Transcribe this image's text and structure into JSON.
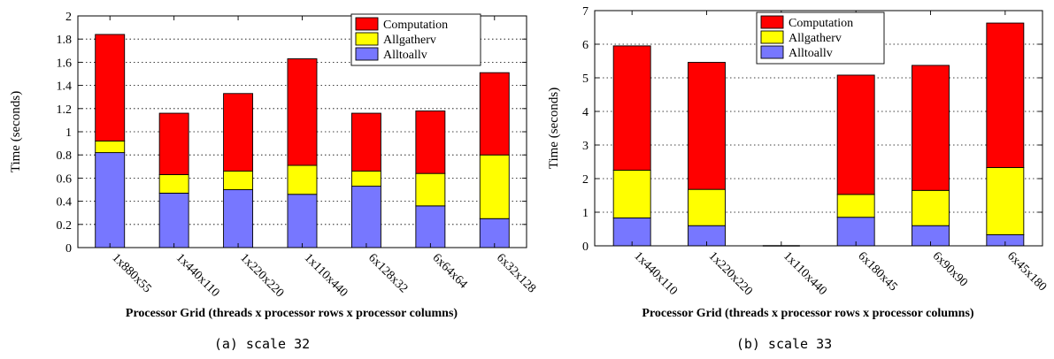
{
  "figure": {
    "captions": [
      "(a) scale 32",
      "(b) scale 33"
    ]
  },
  "chart_data": [
    {
      "type": "bar",
      "stacked": true,
      "title": "",
      "xlabel": "Processor Grid (threads x processor rows x processor columns)",
      "ylabel": "Time (seconds)",
      "ylim": [
        0,
        2
      ],
      "yticks": [
        "0",
        "0.2",
        "0.4",
        "0.6",
        "0.8",
        "1",
        "1.2",
        "1.4",
        "1.6",
        "1.8",
        "2"
      ],
      "ytick_values": [
        0,
        0.2,
        0.4,
        0.6,
        0.8,
        1.0,
        1.2,
        1.4,
        1.6,
        1.8,
        2.0
      ],
      "grid": "horizontal dotted",
      "legend_position": "top-right",
      "categories": [
        "1x880x55",
        "1x440x110",
        "1x220x220",
        "1x110x440",
        "6x128x32",
        "6x64x64",
        "6x32x128"
      ],
      "series": [
        {
          "name": "Alltoallv",
          "color": "#7777ff",
          "values": [
            0.82,
            0.47,
            0.5,
            0.46,
            0.53,
            0.36,
            0.25
          ]
        },
        {
          "name": "Allgatherv",
          "color": "#ffff00",
          "values": [
            0.1,
            0.16,
            0.16,
            0.25,
            0.13,
            0.28,
            0.55
          ]
        },
        {
          "name": "Computation",
          "color": "#ff0000",
          "values": [
            0.92,
            0.53,
            0.67,
            0.92,
            0.5,
            0.54,
            0.71
          ]
        }
      ]
    },
    {
      "type": "bar",
      "stacked": true,
      "title": "",
      "xlabel": "Processor Grid (threads x processor rows x processor columns)",
      "ylabel": "Time (seconds)",
      "ylim": [
        0,
        7
      ],
      "yticks": [
        "0",
        "1",
        "2",
        "3",
        "4",
        "5",
        "6",
        "7"
      ],
      "ytick_values": [
        0,
        1,
        2,
        3,
        4,
        5,
        6,
        7
      ],
      "grid": "horizontal dotted",
      "legend_position": "top-center",
      "categories": [
        "1x440x110",
        "1x220x220",
        "1x110x440",
        "6x180x45",
        "6x90x90",
        "6x45x180"
      ],
      "series": [
        {
          "name": "Alltoallv",
          "color": "#7777ff",
          "values": [
            0.83,
            0.6,
            0.0,
            0.85,
            0.6,
            0.33
          ]
        },
        {
          "name": "Allgatherv",
          "color": "#ffff00",
          "values": [
            1.42,
            1.08,
            0.0,
            0.68,
            1.05,
            2.0
          ]
        },
        {
          "name": "Computation",
          "color": "#ff0000",
          "values": [
            3.7,
            3.78,
            0.0,
            3.55,
            3.72,
            4.3
          ]
        }
      ],
      "legend_order": [
        "Computation",
        "Allgatherv",
        "Alltoallv"
      ]
    }
  ]
}
